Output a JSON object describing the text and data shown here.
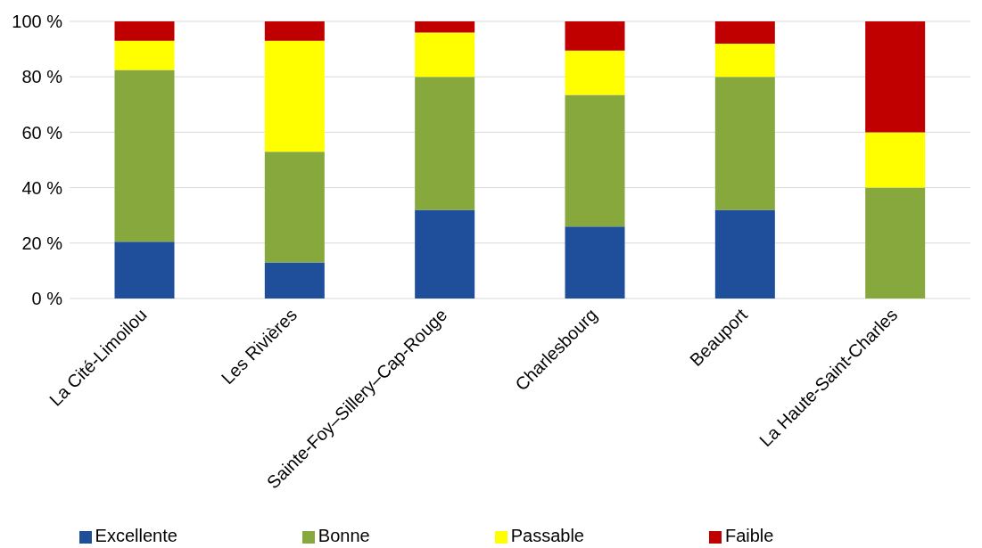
{
  "chart_data": {
    "type": "bar",
    "stacked": true,
    "categories": [
      "La Cité-Limoilou",
      "Les Rivières",
      "Sainte-Foy–Sillery–Cap-Rouge",
      "Charlesbourg",
      "Beauport",
      "La Haute-Saint-Charles"
    ],
    "series": [
      {
        "name": "Excellente",
        "color": "#1f4e9b",
        "values": [
          20.5,
          13,
          32,
          26,
          32,
          0
        ]
      },
      {
        "name": "Bonne",
        "color": "#86a83c",
        "values": [
          62,
          40,
          48,
          47.5,
          48,
          40
        ]
      },
      {
        "name": "Passable",
        "color": "#ffff00",
        "values": [
          10.5,
          40,
          16,
          16,
          12,
          20
        ]
      },
      {
        "name": "Faible",
        "color": "#c00000",
        "values": [
          7,
          7,
          4,
          10.5,
          8,
          40
        ]
      }
    ],
    "ylim": [
      0,
      100
    ],
    "yticks": [
      {
        "value": 0,
        "label": "0 %"
      },
      {
        "value": 20,
        "label": "20 %"
      },
      {
        "value": 40,
        "label": "40 %"
      },
      {
        "value": 60,
        "label": "60 %"
      },
      {
        "value": 80,
        "label": "80 %"
      },
      {
        "value": 100,
        "label": "100 %"
      }
    ],
    "grid": "y",
    "legend": "bottom"
  }
}
